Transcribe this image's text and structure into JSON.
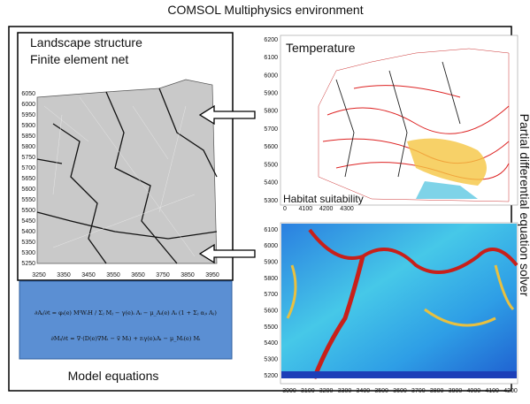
{
  "header": {
    "title": "COMSOL Multiphysics environment"
  },
  "landscape": {
    "title1": "Landscape structure",
    "title2": "Finite element net",
    "y_ticks": [
      6050,
      6000,
      5950,
      5900,
      5850,
      5800,
      5750,
      5700,
      5650,
      5600,
      5550,
      5500,
      5450,
      5400,
      5350,
      5300,
      5250
    ],
    "x_ticks": [
      3250,
      3350,
      3450,
      3550,
      3650,
      3750,
      3850,
      3950
    ]
  },
  "temperature": {
    "title": "Temperature",
    "y_ticks": [
      6200,
      6100,
      6000,
      5900,
      5800,
      5700,
      5600,
      5500,
      5400,
      5300
    ],
    "x_ticks": [
      0,
      4100,
      4200,
      4300
    ]
  },
  "habitat": {
    "title": "Habitat suitability",
    "y_ticks": [
      6100,
      6000,
      5900,
      5800,
      5700,
      5600,
      5500,
      5400,
      5300,
      5200
    ],
    "x_ticks": [
      3000,
      3100,
      3200,
      3300,
      3400,
      3500,
      3600,
      3700,
      3800,
      3900,
      4000,
      4100,
      4200
    ]
  },
  "equations": {
    "lines": [
      "∂Aᵢ/∂t = φᵢ(e) MˡWᵢH / Σⱼ Mⱼ − γ(e)ᵢ Aᵢ − μ_Aᵢ(e) Aᵢ (1 + Σⱼ αⱼᵢ Aⱼ)",
      "∂Mᵢ/∂t = ∇·(D(e)∇Mᵢ − v⃗ Mᵢ) + rᵢγ(e)ᵢAᵢ − μ_Mᵢ(e) Mᵢ"
    ],
    "caption": "Model equations"
  },
  "solver": {
    "label": "Partial differential equation solver"
  }
}
